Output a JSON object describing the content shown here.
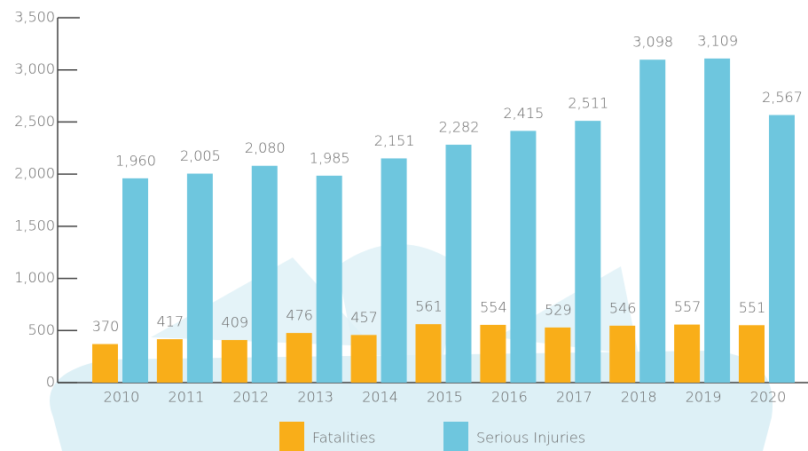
{
  "chart_data": {
    "type": "bar",
    "categories": [
      "2010",
      "2011",
      "2012",
      "2013",
      "2014",
      "2015",
      "2016",
      "2017",
      "2018",
      "2019",
      "2020"
    ],
    "series": [
      {
        "name": "Fatalities",
        "color": "#f9ae19",
        "values": [
          370,
          417,
          409,
          476,
          457,
          561,
          554,
          529,
          546,
          557,
          551
        ]
      },
      {
        "name": "Serious Injuries",
        "color": "#6ec6de",
        "values": [
          1960,
          2005,
          2080,
          1985,
          2151,
          2282,
          2415,
          2511,
          3098,
          3109,
          2567
        ],
        "value_labels": [
          "1,960",
          "2,005",
          "2,080",
          "1,985",
          "2,151",
          "2,282",
          "2,415",
          "2,511",
          "3,098",
          "3,109",
          "2,567"
        ]
      }
    ],
    "ylim": [
      0,
      3500
    ],
    "yticks": [
      0,
      500,
      {
        "value": 1000,
        "label": "1,000"
      },
      {
        "value": 1500,
        "label": "1,500"
      },
      {
        "value": 2000,
        "label": "2,000"
      },
      {
        "value": 2500,
        "label": "2,500"
      },
      {
        "value": 3000,
        "label": "3,000"
      },
      {
        "value": 3500,
        "label": "3,500"
      }
    ],
    "legend": "bottom"
  }
}
